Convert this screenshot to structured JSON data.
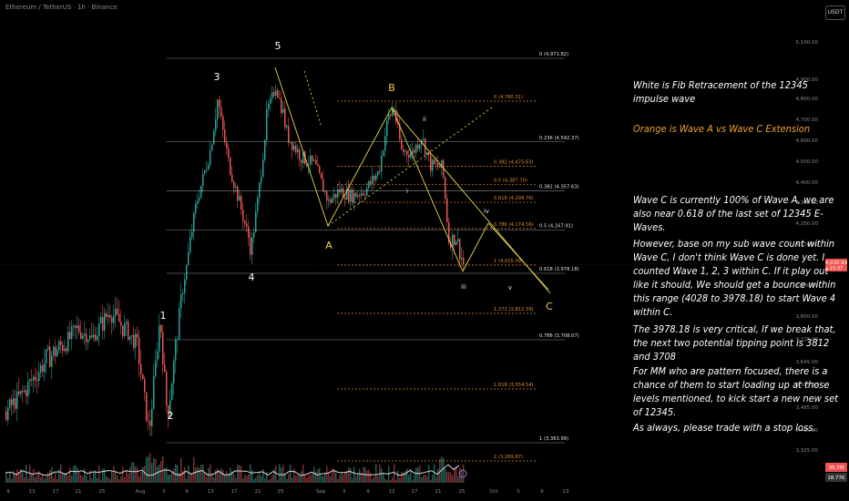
{
  "header": {
    "symbol": "Ethereum / TetherUS · 1h · Binance",
    "currency_button": "USDT"
  },
  "colors": {
    "background": "#000000",
    "bull": "#26a69a",
    "bear": "#ef5350",
    "wave_lines": "#e6d74a",
    "fib_white": "#bdbdbd",
    "fib_orange": "#e08a2a",
    "wave_label_yellow": "#f2d040"
  },
  "annotations": {
    "fib_note": "White is Fib Retracement of the 12345 impulse wave",
    "ext_note": "Orange is Wave A vs Wave C Extension",
    "body": [
      "Wave C is currently 100% of Wave A, we are also near 0.618 of the last set of 12345 E-Waves.",
      "However, base on my sub wave count within Wave C, I don't think Wave C is done yet.  I counted Wave 1, 2, 3 within C.  If it play out like it should, We should get a bounce within this range (4028 to 3978.18) to start Wave 4 within C.",
      "The 3978.18 is very critical,  If we break that, the next two potential tipping point is 3812 and 3708",
      "For MM who are pattern focused, there is a chance of them to start loading up at those levels mentioned, to kick start a new new set of 12345.",
      "As always, please trade with a stop loss."
    ]
  },
  "chart_data": {
    "type": "candlestick",
    "x_axis": {
      "ticks": [
        "9",
        "13",
        "17",
        "21",
        "25",
        "Aug",
        "5",
        "9",
        "13",
        "17",
        "21",
        "25",
        "Sep",
        "5",
        "9",
        "13",
        "17",
        "21",
        "25",
        "Oct",
        "5",
        "9",
        "13"
      ]
    },
    "y_axis": {
      "ylim": [
        3170,
        5170
      ],
      "ticks": [
        "5,100.00",
        "4,900.00",
        "4,800.00",
        "4,700.00",
        "4,600.00",
        "4,500.00",
        "4,400.00",
        "4,300.00",
        "4,200.00",
        "4,100.00",
        "3,900.00",
        "3,800.00",
        "3,725.00",
        "3,645.00",
        "3,565.00",
        "3,485.00",
        "3,405.00",
        "3,325.00"
      ],
      "tick_values": [
        5100,
        4900,
        4800,
        4700,
        4600,
        4500,
        4400,
        4300,
        4200,
        4100,
        3900,
        3800,
        3725,
        3645,
        3565,
        3485,
        3405,
        3325
      ]
    },
    "last_price": {
      "label": "4,030.93",
      "sub": "15:37",
      "value": 4030.93,
      "color": "#ef5350"
    },
    "volume_badges": [
      {
        "label": "35.7M",
        "color": "#ef5350"
      },
      {
        "label": "18.77K",
        "color": "#333333"
      }
    ],
    "fib_retracement_white": [
      {
        "label": "0 (4,971.82)",
        "value": 4971.82
      },
      {
        "label": "0.236 (4,592.37)",
        "value": 4592.37
      },
      {
        "label": "0.382 (4,357.63)",
        "value": 4357.63
      },
      {
        "label": "0.5 (4,167.91)",
        "value": 4167.91
      },
      {
        "label": "0.618 (3,978.18)",
        "value": 3978.18
      },
      {
        "label": "0.786 (3,708.07)",
        "value": 3708.07
      },
      {
        "label": "1 (3,363.99)",
        "value": 3363.99
      }
    ],
    "fib_extension_orange": [
      {
        "label": "0 (4,760.31)",
        "value": 4760.31
      },
      {
        "label": "0.382 (4,475.63)",
        "value": 4475.63
      },
      {
        "label": "0.5 (4,387.70)",
        "value": 4387.7
      },
      {
        "label": "0.618 (4,299.76)",
        "value": 4299.76
      },
      {
        "label": "0.786 (4,174.56)",
        "value": 4174.56
      },
      {
        "label": "1 (4,015.09)",
        "value": 4015.09
      },
      {
        "label": "1.272 (3,812.39)",
        "value": 3812.39
      },
      {
        "label": "1.618 (3,554.54)",
        "value": 3554.54
      },
      {
        "label": "2 (3,269.87)",
        "value": 3269.87
      }
    ],
    "wave_labels_white": [
      "1",
      "2",
      "3",
      "4",
      "5"
    ],
    "wave_labels_yellow": [
      "A",
      "B",
      "C"
    ],
    "sub_wave_labels": [
      "i",
      "ii",
      "iii",
      "iv",
      "v"
    ]
  }
}
